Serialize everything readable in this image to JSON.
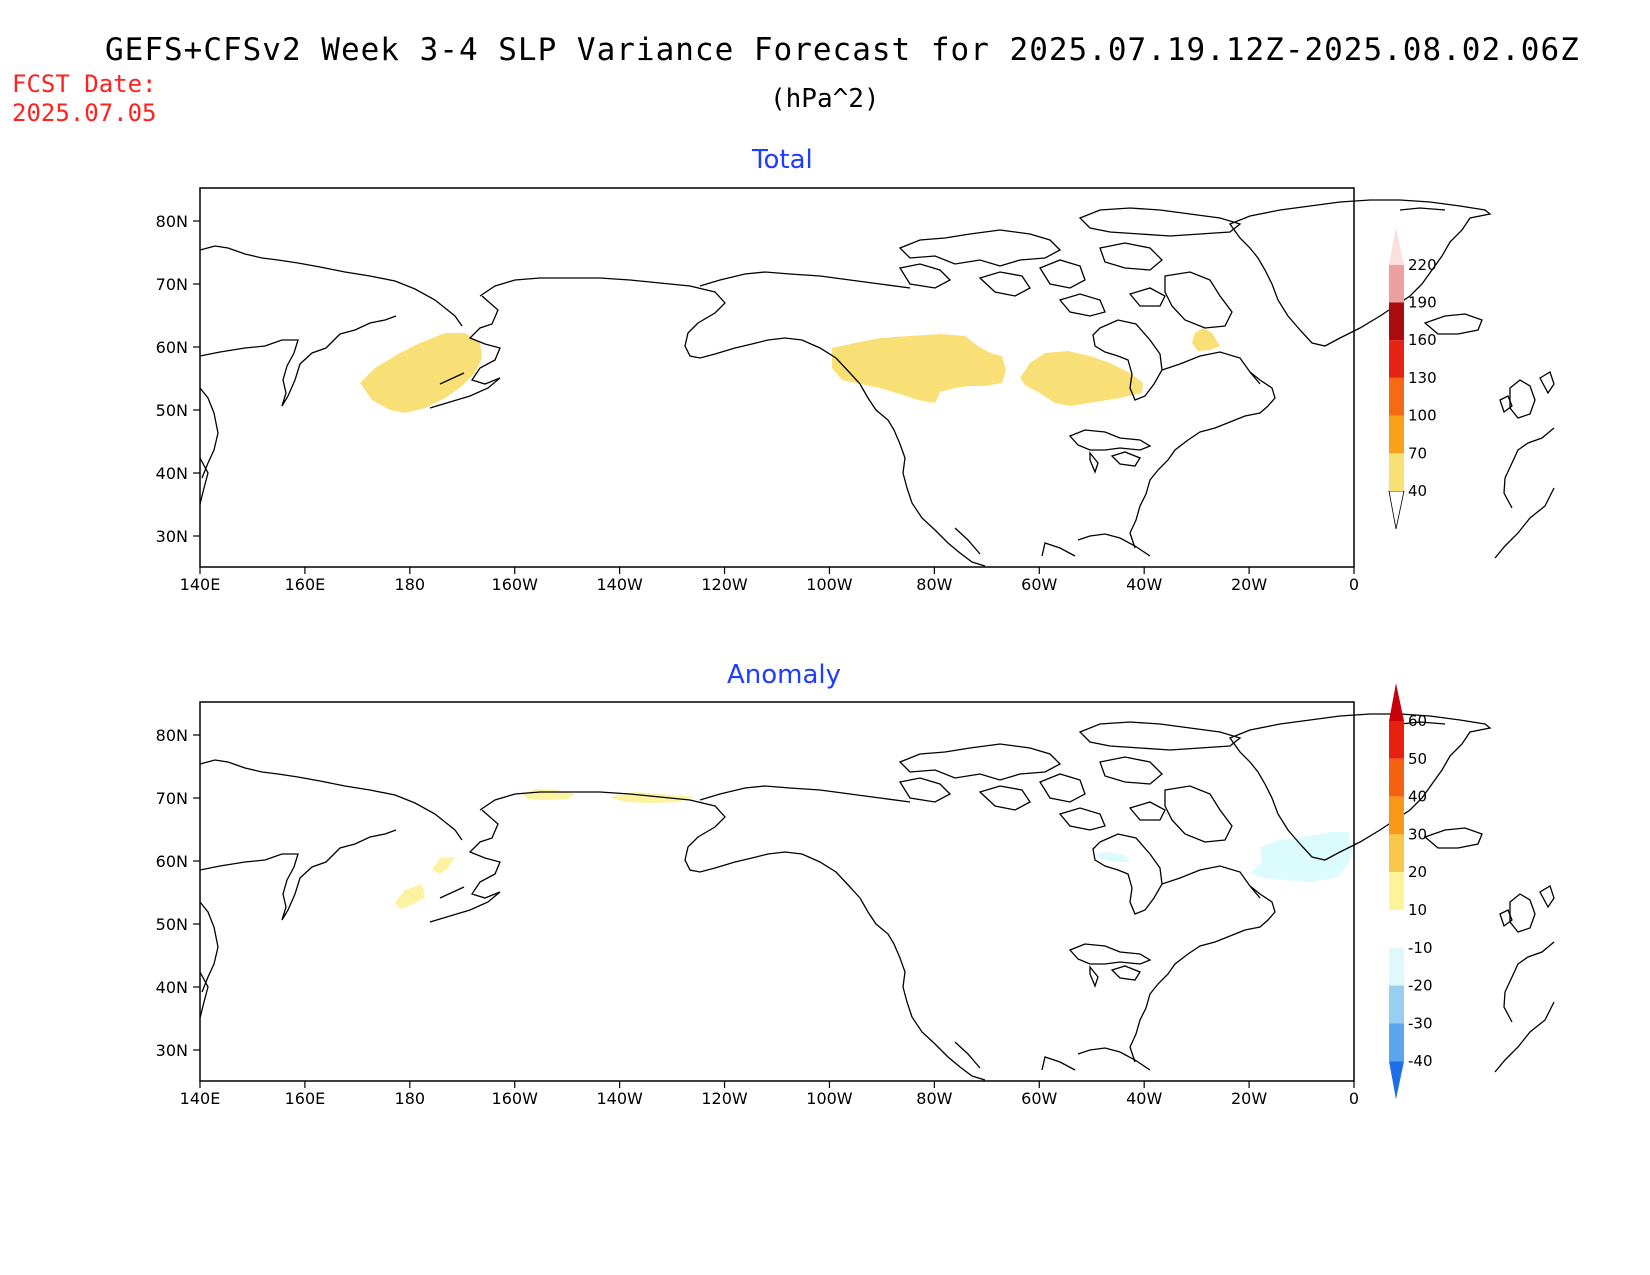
{
  "header": {
    "title": "GEFS+CFSv2 Week 3-4 SLP Variance Forecast for 2025.07.19.12Z-2025.08.02.06Z",
    "units": "(hPa^2)",
    "fcst_label": "FCST Date:",
    "fcst_date": "2025.07.05"
  },
  "panels": [
    {
      "title": "Total",
      "lat_labels": [
        "80N",
        "70N",
        "60N",
        "50N",
        "40N",
        "30N"
      ],
      "lon_labels": [
        "140E",
        "160E",
        "180",
        "160W",
        "140W",
        "120W",
        "100W",
        "80W",
        "60W",
        "40W",
        "20W",
        "0"
      ],
      "colorbar": {
        "ticks": [
          "40",
          "70",
          "100",
          "130",
          "160",
          "190",
          "220"
        ],
        "colors": [
          "#f8e076",
          "#f8a21a",
          "#f56a12",
          "#e82314",
          "#a80c0c",
          "#eda0a0",
          "#fbe0e0"
        ]
      },
      "shaded_color": "#f8e076"
    },
    {
      "title": "Anomaly",
      "lat_labels": [
        "80N",
        "70N",
        "60N",
        "50N",
        "40N",
        "30N"
      ],
      "lon_labels": [
        "140E",
        "160E",
        "180",
        "160W",
        "140W",
        "120W",
        "100W",
        "80W",
        "60W",
        "40W",
        "20W",
        "0"
      ],
      "colorbar": {
        "ticks": [
          "60",
          "50",
          "40",
          "30",
          "20",
          "10",
          "-10",
          "-20",
          "-30",
          "-40"
        ],
        "colors_top_down": [
          "#c8000a",
          "#e8210e",
          "#f5620f",
          "#f89816",
          "#f8c84a",
          "#fdf49a",
          "#ffffff",
          "#dff8fb",
          "#98cef2",
          "#5aa6ee",
          "#1e6ee8"
        ]
      },
      "positive_color": "#fbf3a0",
      "negative_color": "#dcfbfc"
    }
  ]
}
